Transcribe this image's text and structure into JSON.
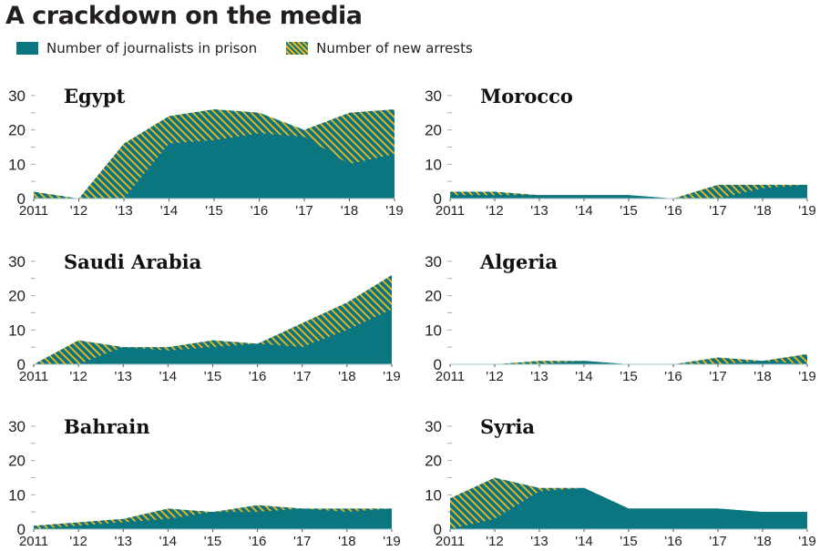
{
  "title": "A crackdown on the media",
  "legend": {
    "prison": "Number of journalists in prison",
    "arrests": "Number of new arrests"
  },
  "colors": {
    "prison": "#0b7580",
    "arrests_hatch": "#f2b81c",
    "tick": "#aaaaaa"
  },
  "chart_data": [
    {
      "type": "area",
      "title": "Egypt",
      "x": [
        "2011",
        "'12",
        "'13",
        "'14",
        "'15",
        "'16",
        "'17",
        "'18",
        "'19"
      ],
      "yticks": [
        "0",
        "10",
        "20",
        "30"
      ],
      "ylim": [
        0,
        30
      ],
      "series": [
        {
          "name": "Number of journalists in prison",
          "values": [
            0,
            0,
            0,
            16,
            17,
            19,
            18,
            10,
            13
          ]
        },
        {
          "name": "Number of new arrests",
          "values": [
            2,
            0,
            16,
            8,
            9,
            6,
            2,
            15,
            13
          ]
        }
      ]
    },
    {
      "type": "area",
      "title": "Morocco",
      "x": [
        "2011",
        "'12",
        "'13",
        "'14",
        "'15",
        "'16",
        "'17",
        "'18",
        "'19"
      ],
      "yticks": [
        "0",
        "10",
        "20",
        "30"
      ],
      "ylim": [
        0,
        30
      ],
      "series": [
        {
          "name": "Number of journalists in prison",
          "values": [
            1,
            1,
            1,
            1,
            1,
            0,
            0,
            3,
            4
          ]
        },
        {
          "name": "Number of new arrests",
          "values": [
            1,
            1,
            0,
            0,
            0,
            0,
            4,
            1,
            0
          ]
        }
      ]
    },
    {
      "type": "area",
      "title": "Saudi Arabia",
      "x": [
        "2011",
        "'12",
        "'13",
        "'14",
        "'15",
        "'16",
        "'17",
        "'18",
        "'19"
      ],
      "yticks": [
        "0",
        "10",
        "20",
        "30"
      ],
      "ylim": [
        0,
        30
      ],
      "series": [
        {
          "name": "Number of journalists in prison",
          "values": [
            0,
            0,
            5,
            4,
            5,
            6,
            5,
            10,
            16
          ]
        },
        {
          "name": "Number of new arrests",
          "values": [
            0,
            7,
            0,
            1,
            2,
            0,
            7,
            8,
            10
          ]
        }
      ]
    },
    {
      "type": "area",
      "title": "Algeria",
      "x": [
        "2011",
        "'12",
        "'13",
        "'14",
        "'15",
        "'16",
        "'17",
        "'18",
        "'19"
      ],
      "yticks": [
        "0",
        "10",
        "20",
        "30"
      ],
      "ylim": [
        0,
        30
      ],
      "series": [
        {
          "name": "Number of journalists in prison",
          "values": [
            0,
            0,
            0,
            1,
            0,
            0,
            0,
            1,
            0
          ]
        },
        {
          "name": "Number of new arrests",
          "values": [
            0,
            0,
            1,
            0,
            0,
            0,
            2,
            0,
            3
          ]
        }
      ]
    },
    {
      "type": "area",
      "title": "Bahrain",
      "x": [
        "2011",
        "'12",
        "'13",
        "'14",
        "'15",
        "'16",
        "'17",
        "'18",
        "'19"
      ],
      "yticks": [
        "0",
        "10",
        "20",
        "30"
      ],
      "ylim": [
        0,
        30
      ],
      "series": [
        {
          "name": "Number of journalists in prison",
          "values": [
            0,
            1,
            2,
            3,
            5,
            5,
            6,
            5,
            6
          ]
        },
        {
          "name": "Number of new arrests",
          "values": [
            1,
            1,
            1,
            3,
            0,
            2,
            0,
            1,
            0
          ]
        }
      ]
    },
    {
      "type": "area",
      "title": "Syria",
      "x": [
        "2011",
        "'12",
        "'13",
        "'14",
        "'15",
        "'16",
        "'17",
        "'18",
        "'19"
      ],
      "yticks": [
        "0",
        "10",
        "20",
        "30"
      ],
      "ylim": [
        0,
        30
      ],
      "series": [
        {
          "name": "Number of journalists in prison",
          "values": [
            0,
            3,
            11,
            12,
            6,
            6,
            6,
            5,
            5
          ]
        },
        {
          "name": "Number of new arrests",
          "values": [
            9,
            12,
            1,
            0,
            0,
            0,
            0,
            0,
            0
          ]
        }
      ]
    }
  ]
}
